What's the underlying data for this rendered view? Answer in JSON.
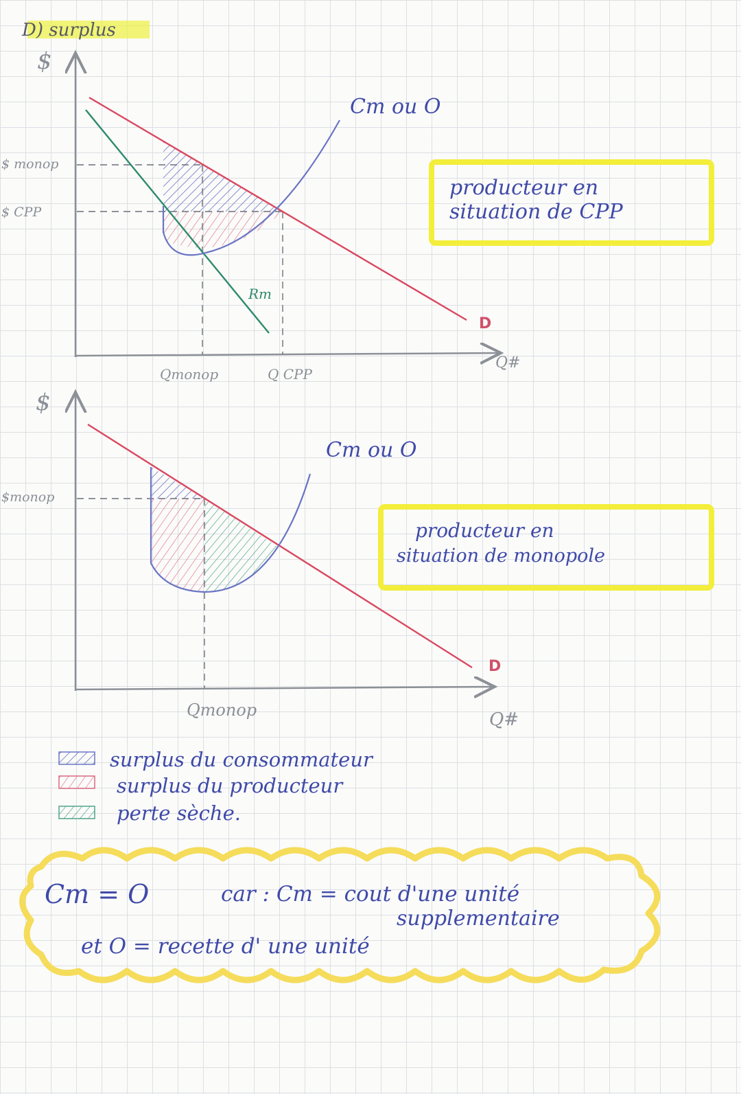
{
  "section": {
    "title": "D) surplus"
  },
  "graph_top": {
    "y_axis": "$",
    "x_axis": "Q#",
    "price_labels": [
      "$ monop",
      "$ CPP"
    ],
    "quantity_labels": [
      "Qmonop",
      "Q CPP"
    ],
    "curve_labels": {
      "supply": "Cm ou O",
      "revenue": "Rm",
      "demand": "D"
    },
    "note": {
      "line1": "producteur en",
      "line2": "situation de CPP"
    }
  },
  "graph_bottom": {
    "y_axis": "$",
    "x_axis": "Q#",
    "price_labels": [
      "$monop"
    ],
    "quantity_labels": [
      "Qmonop"
    ],
    "curve_labels": {
      "supply": "Cm ou O",
      "demand": "D"
    },
    "note": {
      "line1": "producteur en",
      "line2": "situation de monopole"
    }
  },
  "legend": [
    {
      "label": "surplus du consommateur",
      "color": "#6a74c4"
    },
    {
      "label": "surplus du producteur",
      "color": "#d96a80"
    },
    {
      "label": "perte sèche.",
      "color": "#4fa58a"
    }
  ],
  "cloud_note": {
    "left": "Cm = O",
    "line1": "car : Cm = cout d'une unité",
    "line2": "supplementaire",
    "line3": "et O = recette d' une unité"
  },
  "colors": {
    "demand": "#d9485f",
    "supply": "#6a74c4",
    "revenue": "#2f8a6e",
    "axis": "#8c9097",
    "highlight": "#f3ee3a"
  }
}
